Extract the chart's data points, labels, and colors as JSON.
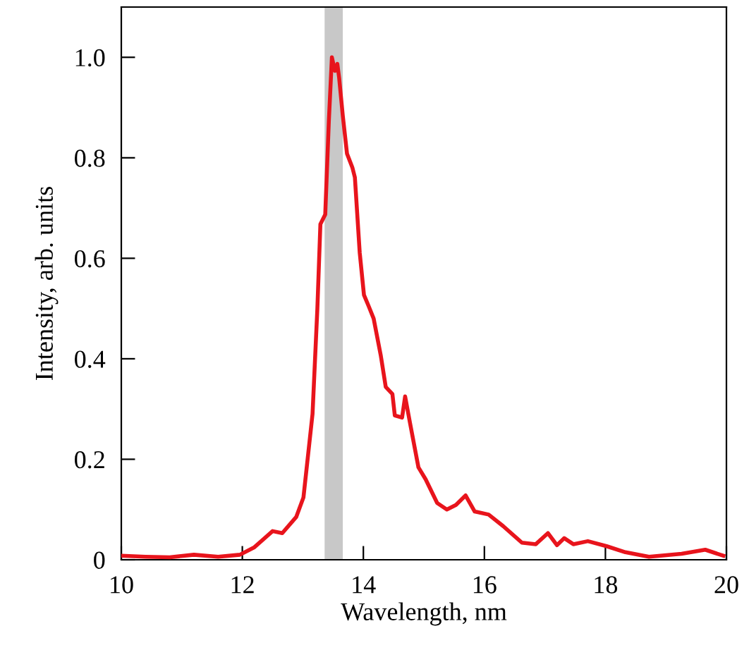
{
  "chart_data": {
    "type": "line",
    "xlabel": "Wavelength, nm",
    "ylabel": "Intensity, arb. units",
    "xlim": [
      10,
      20
    ],
    "ylim": [
      0,
      1.1
    ],
    "xticks": [
      10,
      12,
      14,
      16,
      18,
      20
    ],
    "yticks": [
      0,
      {
        "value": 0.2,
        "label": "0.2"
      },
      {
        "value": 0.4,
        "label": "0.4"
      },
      {
        "value": 0.6,
        "label": "0.6"
      },
      {
        "value": 0.8,
        "label": "0.8"
      },
      {
        "value": 1.0,
        "label": "1.0"
      }
    ],
    "grid": false,
    "legend": false,
    "marker": "none",
    "line_style": "solid",
    "bands": [
      {
        "axis": "x",
        "from": 13.36,
        "to": 13.66,
        "color": "#c8c8c8"
      }
    ],
    "series": [
      {
        "color": "#e8141c",
        "x": [
          10.0,
          10.4,
          10.8,
          11.2,
          11.6,
          11.96,
          12.2,
          12.5,
          12.66,
          12.89,
          13.01,
          13.16,
          13.24,
          13.29,
          13.37,
          13.43,
          13.48,
          13.53,
          13.57,
          13.6,
          13.66,
          13.73,
          13.82,
          13.86,
          13.94,
          14.01,
          14.09,
          14.17,
          14.29,
          14.37,
          14.48,
          14.52,
          14.64,
          14.69,
          14.77,
          14.91,
          15.03,
          15.22,
          15.38,
          15.53,
          15.69,
          15.84,
          16.07,
          16.31,
          16.62,
          16.85,
          17.05,
          17.2,
          17.32,
          17.47,
          17.71,
          18.02,
          18.33,
          18.72,
          19.26,
          19.65,
          19.95
        ],
        "values": [
          0.008,
          0.006,
          0.005,
          0.01,
          0.006,
          0.01,
          0.025,
          0.057,
          0.053,
          0.085,
          0.124,
          0.29,
          0.5,
          0.668,
          0.687,
          0.874,
          1.0,
          0.973,
          0.987,
          0.959,
          0.884,
          0.808,
          0.78,
          0.761,
          0.611,
          0.527,
          0.504,
          0.48,
          0.405,
          0.344,
          0.33,
          0.287,
          0.283,
          0.325,
          0.273,
          0.184,
          0.16,
          0.113,
          0.1,
          0.109,
          0.128,
          0.096,
          0.09,
          0.067,
          0.034,
          0.031,
          0.053,
          0.029,
          0.043,
          0.031,
          0.037,
          0.027,
          0.015,
          0.006,
          0.012,
          0.02,
          0.008
        ]
      }
    ]
  }
}
